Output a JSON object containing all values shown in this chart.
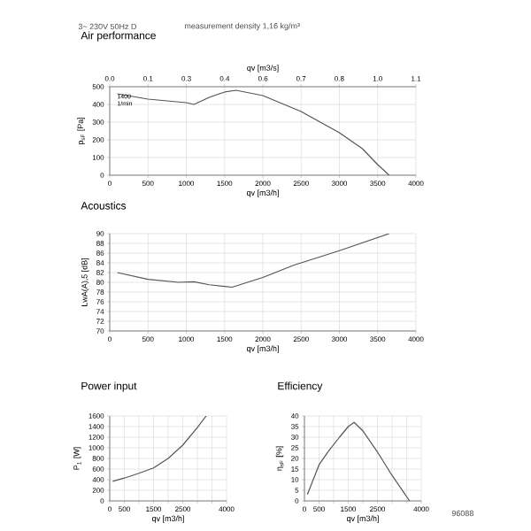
{
  "chart_data": [
    {
      "type": "line",
      "title": "Air performance",
      "subtitle": "3~ 230V 50Hz D",
      "annotations": [
        "measurement density 1,16 kg/m³",
        "1400 1/min"
      ],
      "xlabel": "qv [m3/h]",
      "ylabel": "p$_{sF}$ [Pa]",
      "x2label": "qv [m3/s]",
      "x": [
        100,
        500,
        1000,
        1100,
        1300,
        1500,
        1650,
        2000,
        2500,
        3000,
        3300,
        3500,
        3650
      ],
      "values": [
        460,
        430,
        410,
        400,
        440,
        470,
        480,
        450,
        360,
        240,
        150,
        60,
        0
      ],
      "color": "#555555",
      "xlim": [
        0,
        4000
      ],
      "xticks": [
        0,
        500,
        1000,
        1500,
        2000,
        2500,
        3000,
        3500,
        4000
      ],
      "ylim": [
        0,
        500
      ],
      "yticks": [
        0,
        100,
        200,
        300,
        400,
        500
      ],
      "x2lim": [
        0,
        1.111
      ],
      "x2ticks": [
        {
          "value": 0,
          "label": "0.0"
        },
        {
          "value": 0.139,
          "label": "0.1"
        },
        {
          "value": 0.278,
          "label": "0.3"
        },
        {
          "value": 0.417,
          "label": "0.4"
        },
        {
          "value": 0.556,
          "label": "0.6"
        },
        {
          "value": 0.694,
          "label": "0.7"
        },
        {
          "value": 0.833,
          "label": "0.8"
        },
        {
          "value": 0.972,
          "label": "1.0"
        },
        {
          "value": 1.111,
          "label": "1.1"
        }
      ],
      "grid": true
    },
    {
      "type": "line",
      "title": "Acoustics",
      "xlabel": "qv [m3/h]",
      "ylabel": "LwA(A),5 [dB]",
      "x": [
        100,
        500,
        900,
        1100,
        1300,
        1600,
        2000,
        2400,
        3000,
        3650
      ],
      "values": [
        82,
        80.6,
        80,
        80.1,
        79.5,
        79,
        81,
        83.5,
        86.5,
        90
      ],
      "color": "#555555",
      "xlim": [
        0,
        4000
      ],
      "xticks": [
        0,
        500,
        1000,
        1500,
        2000,
        2500,
        3000,
        3500,
        4000
      ],
      "ylim": [
        70,
        90
      ],
      "yticks": [
        70,
        72,
        74,
        76,
        78,
        80,
        82,
        84,
        86,
        88,
        90
      ],
      "grid": true
    },
    {
      "type": "line",
      "title": "Power input",
      "xlabel": "qv [m3/h]",
      "ylabel": "P$_{1}$ [W]",
      "x": [
        100,
        500,
        1000,
        1500,
        2000,
        2500,
        3000,
        3300
      ],
      "values": [
        370,
        430,
        520,
        620,
        800,
        1050,
        1380,
        1600
      ],
      "color": "#555555",
      "xlim": [
        0,
        4000
      ],
      "xticks": [
        0,
        500,
        {
          "value": 1000,
          "label": null
        },
        1500,
        {
          "value": 2000,
          "label": null
        },
        2500,
        {
          "value": 3000,
          "label": null
        },
        {
          "value": 3500,
          "label": null
        },
        4000
      ],
      "ylim": [
        0,
        1600
      ],
      "yticks": [
        0,
        200,
        400,
        600,
        800,
        1000,
        1200,
        1400,
        1600
      ],
      "grid": true
    },
    {
      "type": "line",
      "title": "Efficiency",
      "xlabel": "qv [m3/h]",
      "ylabel": "η$_{sF}$ [%]",
      "annotations": [
        "96088"
      ],
      "x": [
        100,
        500,
        800,
        1200,
        1500,
        1700,
        2000,
        2500,
        3000,
        3600
      ],
      "values": [
        3,
        17,
        23,
        30,
        35,
        37,
        33,
        23,
        12,
        0
      ],
      "color": "#555555",
      "xlim": [
        0,
        4000
      ],
      "xticks": [
        0,
        500,
        {
          "value": 1000,
          "label": null
        },
        1500,
        {
          "value": 2000,
          "label": null
        },
        2500,
        {
          "value": 3000,
          "label": null
        },
        {
          "value": 3500,
          "label": null
        },
        4000
      ],
      "ylim": [
        0,
        40
      ],
      "yticks": [
        0,
        5,
        10,
        15,
        20,
        25,
        30,
        35,
        40
      ],
      "grid": true
    }
  ]
}
